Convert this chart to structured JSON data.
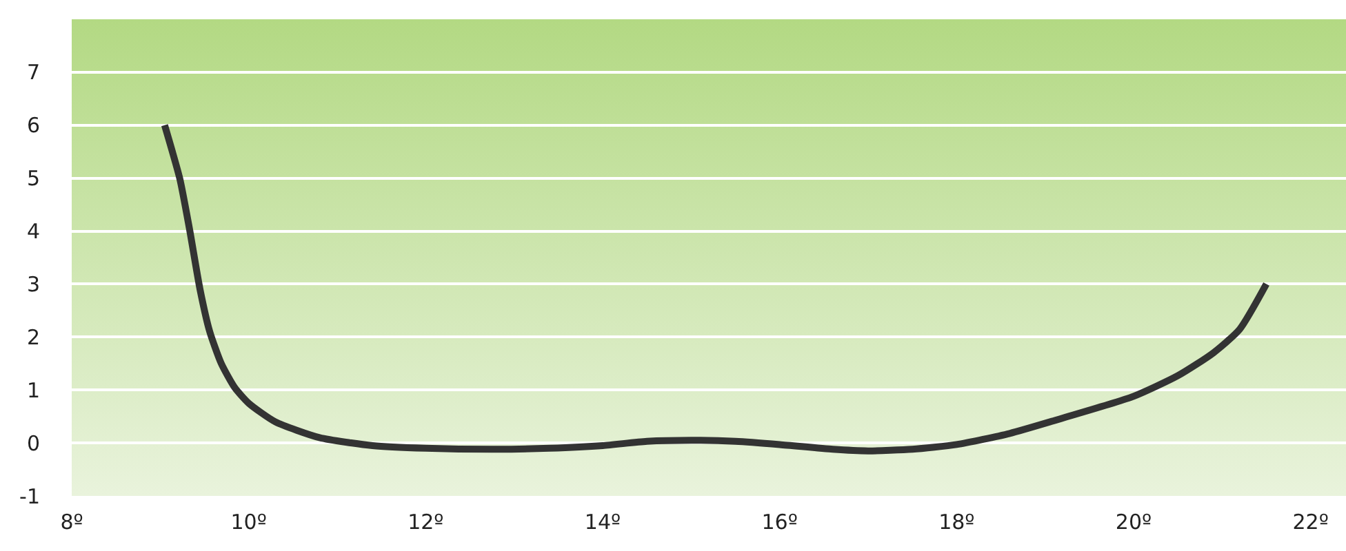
{
  "chart_data": {
    "type": "line",
    "line_style": "solid",
    "marker": "none",
    "grid": "y",
    "xlim": [
      8,
      22.4
    ],
    "ylim": [
      -1,
      8
    ],
    "xticks": [
      {
        "value": 8,
        "label": "8º"
      },
      {
        "value": 10,
        "label": "10º"
      },
      {
        "value": 12,
        "label": "12º"
      },
      {
        "value": 14,
        "label": "14º"
      },
      {
        "value": 16,
        "label": "16º"
      },
      {
        "value": 18,
        "label": "18º"
      },
      {
        "value": 20,
        "label": "20º"
      },
      {
        "value": 22,
        "label": "22º"
      }
    ],
    "yticks": [
      -1,
      0,
      1,
      2,
      3,
      4,
      5,
      6,
      7,
      {
        "value": 8,
        "label": null
      }
    ],
    "series": [
      {
        "color": "#333333",
        "x": [
          9.05,
          9.22,
          9.33,
          9.45,
          9.56,
          9.69,
          9.84,
          10.0,
          10.3,
          10.8,
          11.4,
          12,
          12.8,
          13.4,
          14,
          14.5,
          15,
          15.5,
          16,
          16.6,
          17.0,
          17.5,
          18,
          18.6,
          19.2,
          20,
          20.5,
          20.9,
          21.2,
          21.5
        ],
        "values": [
          6.0,
          5.0,
          4.05,
          2.9,
          2.1,
          1.5,
          1.05,
          0.75,
          0.4,
          0.1,
          -0.05,
          -0.1,
          -0.12,
          -0.1,
          -0.05,
          0.03,
          0.05,
          0.03,
          -0.03,
          -0.12,
          -0.15,
          -0.12,
          -0.03,
          0.18,
          0.47,
          0.88,
          1.27,
          1.7,
          2.15,
          3.0
        ]
      }
    ]
  }
}
